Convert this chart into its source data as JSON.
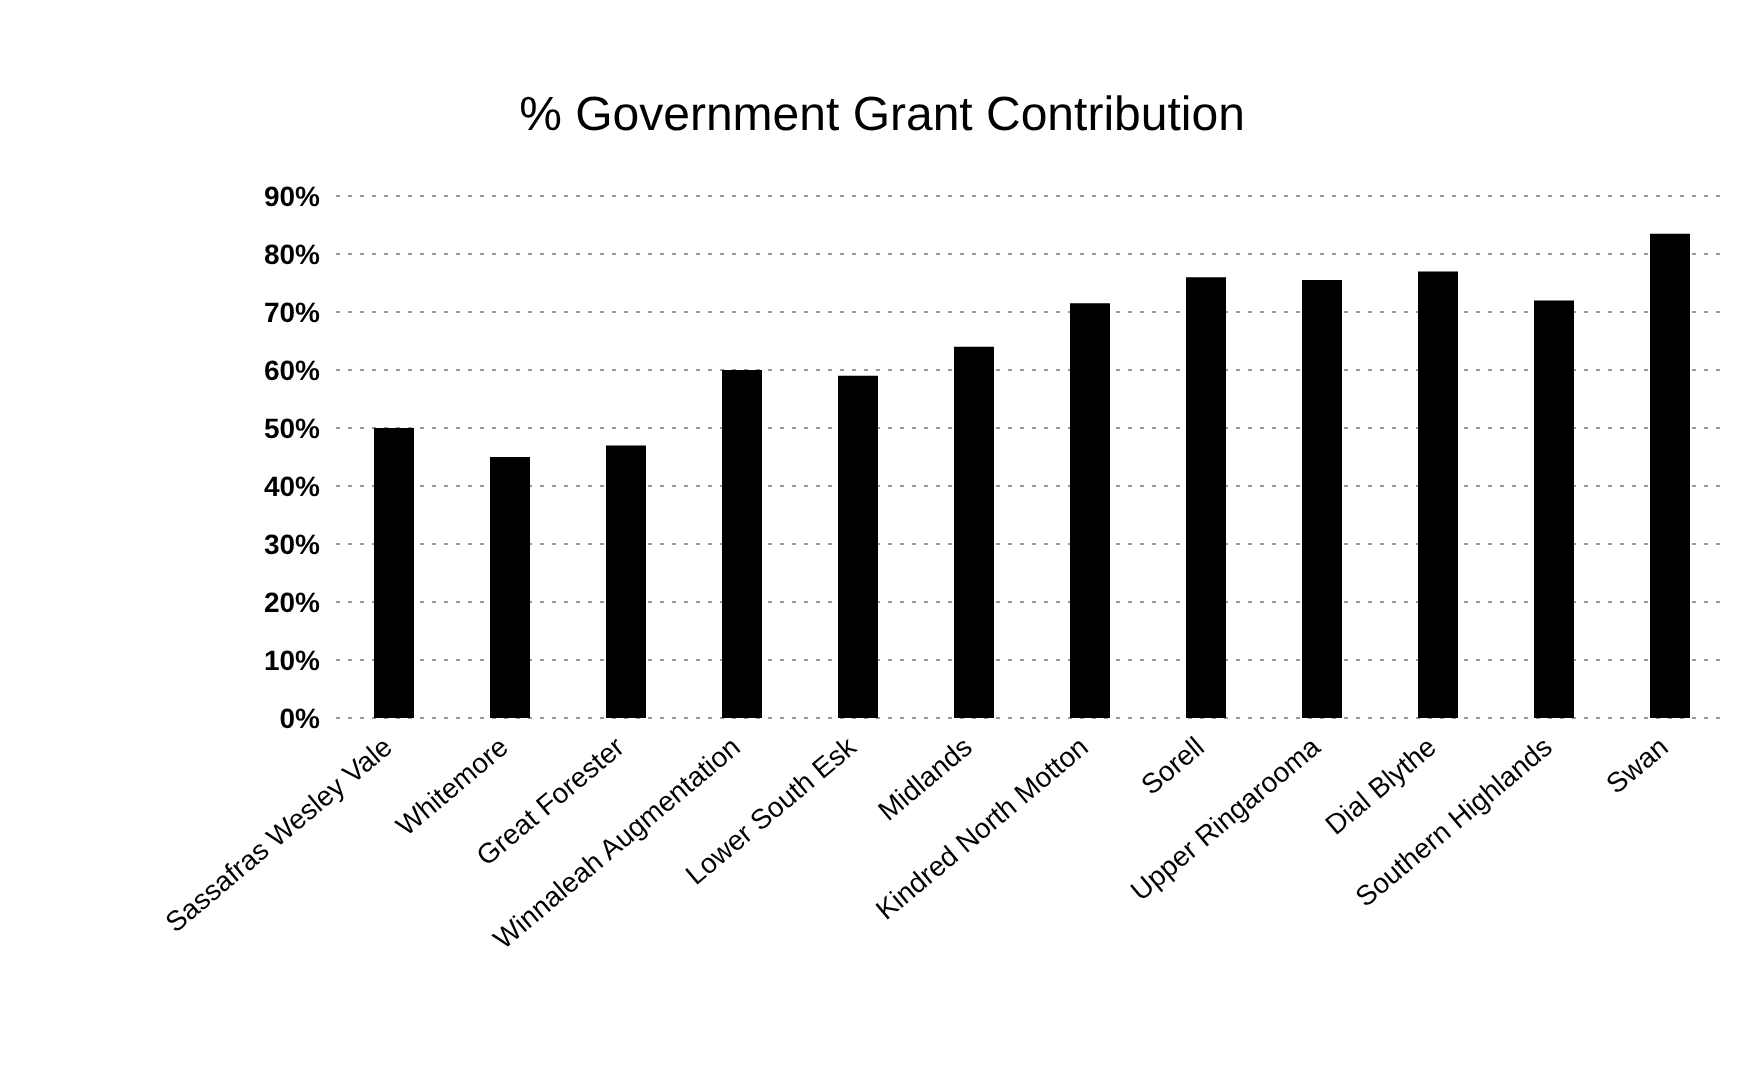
{
  "chart_data": {
    "type": "bar",
    "title": "% Government Grant Contribution",
    "categories": [
      "Sassafras Wesley Vale",
      "Whitemore",
      "Great Forester",
      "Winnaleah Augmentation",
      "Lower South Esk",
      "Midlands",
      "Kindred North Motton",
      "Sorell",
      "Upper Ringarooma",
      "Dial Blythe",
      "Southern Highlands",
      "Swan"
    ],
    "values": [
      50,
      45,
      47,
      60,
      59,
      64,
      71.5,
      76,
      75.5,
      77,
      72,
      83.5
    ],
    "color": "#000000",
    "ylim": [
      0,
      90
    ],
    "yticks": [
      {
        "value": 0,
        "label": "0%"
      },
      {
        "value": 10,
        "label": "10%"
      },
      {
        "value": 20,
        "label": "20%"
      },
      {
        "value": 30,
        "label": "30%"
      },
      {
        "value": 40,
        "label": "40%"
      },
      {
        "value": 50,
        "label": "50%"
      },
      {
        "value": 60,
        "label": "60%"
      },
      {
        "value": 70,
        "label": "70%"
      },
      {
        "value": 80,
        "label": "80%"
      },
      {
        "value": 90,
        "label": "90%"
      }
    ],
    "grid": "y"
  }
}
